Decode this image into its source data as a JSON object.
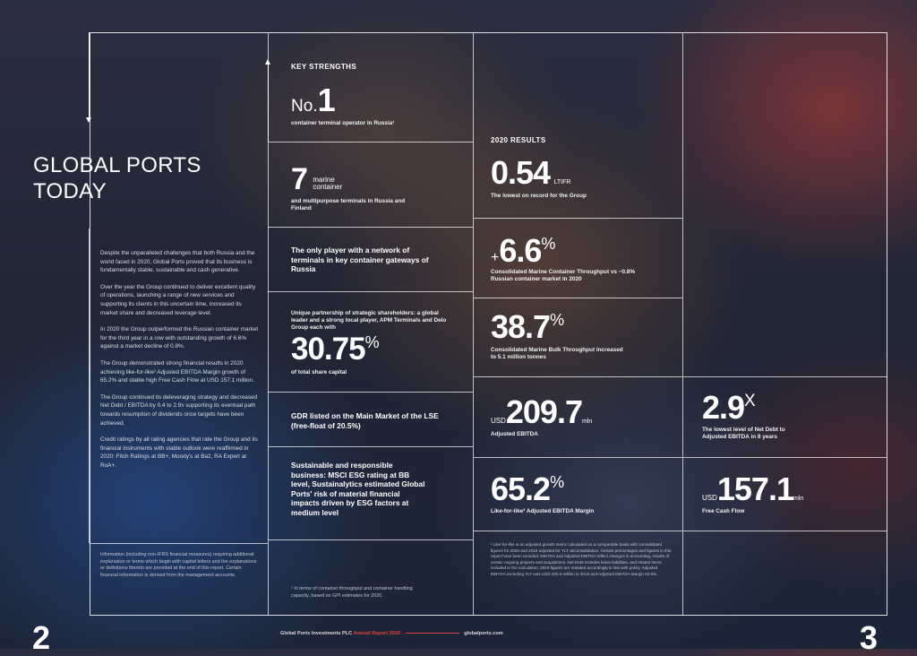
{
  "title_lines": [
    "GLOBAL PORTS",
    "TODAY"
  ],
  "intro_paragraphs": [
    "Despite the unparalleled challenges that both Russia and the world faced in 2020, Global Ports proved that its business is fundamentally stable, sustainable and cash generative.",
    "Over the year the Group continued to deliver excellent quality of operations, launching a range of new services and supporting its clients in this uncertain time, increased its market share and decreased leverage level.",
    "In 2020 the Group outperformed the Russian container market for the third year in a row with outstanding growth of 6.6% against a market decline of 0.8%.",
    "The Group demonstrated strong financial results in 2020 achieving like-for-like² Adjusted EBITDA Margin growth of 65.2% and stable high Free Cash Flow at USD 157.1 million.",
    "The Group continued its deleveraging strategy and decreased Net Debt / EBITDA by 0.4 to 2.9x supporting its eventual path towards resumption of dividends once targets have been achieved.",
    "Credit ratings by all rating agencies that rate the Group and its financial instruments with stable outlook were reaffirmed in 2020: Fitch Ratings at BB+, Moody's at Ba2, RA Expert at RuA+."
  ],
  "info_note": "Information (including non-IFRS financial measures) requiring additional explanation or terms which begin with capital letters and the explanations or definitions thereto are provided at the end of this report. Certain financial information is derived from the management accounts.",
  "key_strengths": {
    "heading": "KEY STRENGTHS",
    "no_prefix": "No.",
    "no_value": "1",
    "no_caption": "container terminal operator in Russia¹",
    "marine_value": "7",
    "marine_word1": "marine",
    "marine_word2": "container",
    "marine_caption": "and multipurpose terminals in Russia and Finland",
    "only_player": "The only player with a network of terminals in key container gateways of Russia",
    "partnership": "Unique partnership of strategic shareholders: a global leader and a strong local player, APM Terminals and Delo Group each with",
    "share_value": "30.75",
    "share_pct": "%",
    "share_caption": "of total share capital",
    "gdr": "GDR listed on the Main Market of the LSE (free-float of 20.5%)",
    "esg": "Sustainable and responsible business: MSCI ESG rating at BB level, Sustainalytics estimated Global Ports' risk of material financial impacts driven by ESG factors at medium level",
    "footnote1": "¹ In terms of container throughput and container handling capacity, based on GPI estimates for 2020."
  },
  "results": {
    "heading": "2020 RESULTS",
    "ltifr_value": "0.54",
    "ltifr_unit": "LTIFR",
    "ltifr_caption": "The lowest on record for the Group",
    "cont_prefix": "+",
    "cont_value": "6.6",
    "cont_pct": "%",
    "cont_caption": "Consolidated Marine Container Throughput vs −0.8% Russian container market in 2020",
    "bulk_value": "38.7",
    "bulk_pct": "%",
    "bulk_caption": "Consolidated Marine Bulk Throughput increased to 5.1 million tonnes",
    "ebitda_currency": "USD",
    "ebitda_value": "209.7",
    "ebitda_unit": "mln",
    "ebitda_caption": "Adjusted EBITDA",
    "margin_value": "65.2",
    "margin_pct": "%",
    "margin_caption": "Like-for-like² Adjusted EBITDA Margin",
    "netdebt_value": "2.9",
    "netdebt_x": "X",
    "netdebt_caption": "The lowest level of Net Debt to Adjusted EBITDA in 8 years",
    "fcf_currency": "USD",
    "fcf_value": "157.1",
    "fcf_unit": "mln",
    "fcf_caption": "Free Cash Flow",
    "footnote2": "² Like-for-like is an adjusted growth metric calculated on a comparable basis with consolidated figures for 2020 and 2019 adjusted for YLT deconsolidation. Certain percentages and figures in this report have been rounded. EBITDA and Adjusted EBITDA reflect changes in accounting, results of certain ongoing projects and acquisitions. Net Debt includes lease liabilities, and related items included in the calculation; 2019 figures are restated accordingly in line with policy. Adjusted EBITDA excluding YLT was USD 202.0 million in 2019 and Adjusted EBITDA Margin 63.9%."
  },
  "footer": {
    "left_page": "2",
    "right_page": "3",
    "company": "Global Ports Investments PLC",
    "report": "Annual Report 2020",
    "site": "globalports.com"
  }
}
